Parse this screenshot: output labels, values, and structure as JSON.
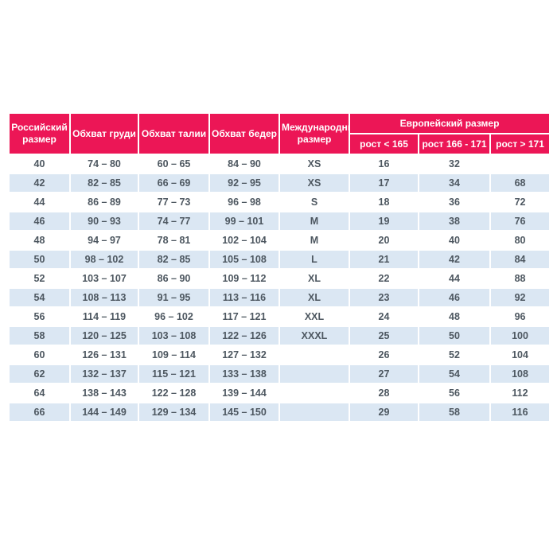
{
  "chart_data": {
    "type": "table",
    "title": "",
    "columns": [
      "Российский размер",
      "Обхват груди",
      "Обхват талии",
      "Обхват бедер",
      "Международный размер",
      "рост < 165",
      "рост 166 - 171",
      "рост > 171"
    ],
    "column_groups": [
      {
        "label": "Европейский размер",
        "spans_columns": [
          "рост < 165",
          "рост 166 - 171",
          "рост > 171"
        ]
      }
    ],
    "rows": [
      [
        "40",
        "74 – 80",
        "60 – 65",
        "84 – 90",
        "XS",
        "16",
        "32",
        ""
      ],
      [
        "42",
        "82 – 85",
        "66 – 69",
        "92 – 95",
        "XS",
        "17",
        "34",
        "68"
      ],
      [
        "44",
        "86 – 89",
        "77 – 73",
        "96 – 98",
        "S",
        "18",
        "36",
        "72"
      ],
      [
        "46",
        "90 – 93",
        "74 – 77",
        "99 – 101",
        "M",
        "19",
        "38",
        "76"
      ],
      [
        "48",
        "94 – 97",
        "78 – 81",
        "102 – 104",
        "M",
        "20",
        "40",
        "80"
      ],
      [
        "50",
        "98 – 102",
        "82 – 85",
        "105 – 108",
        "L",
        "21",
        "42",
        "84"
      ],
      [
        "52",
        "103 – 107",
        "86 – 90",
        "109 – 112",
        "XL",
        "22",
        "44",
        "88"
      ],
      [
        "54",
        "108 – 113",
        "91 – 95",
        "113 – 116",
        "XL",
        "23",
        "46",
        "92"
      ],
      [
        "56",
        "114 – 119",
        "96 – 102",
        "117 – 121",
        "XXL",
        "24",
        "48",
        "96"
      ],
      [
        "58",
        "120 – 125",
        "103 – 108",
        "122 – 126",
        "XXXL",
        "25",
        "50",
        "100"
      ],
      [
        "60",
        "126 – 131",
        "109 – 114",
        "127 – 132",
        "",
        "26",
        "52",
        "104"
      ],
      [
        "62",
        "132 – 137",
        "115 – 121",
        "133 – 138",
        "",
        "27",
        "54",
        "108"
      ],
      [
        "64",
        "138 – 143",
        "122 – 128",
        "139 – 144",
        "",
        "28",
        "56",
        "112"
      ],
      [
        "66",
        "144 – 149",
        "129 – 134",
        "145 – 150",
        "",
        "29",
        "58",
        "116"
      ]
    ],
    "layout": {
      "zebra_striping": "every second data row highlighted starting with row 42",
      "grid": "white 2px dividers between all cells",
      "header_rows": 2
    }
  },
  "colors": {
    "header_bg": "#EC1656",
    "header_text": "#FFFFFF",
    "stripe_bg": "#DBE7F3",
    "cell_text": "#4D5760",
    "page_bg": "#FFFFFF"
  }
}
